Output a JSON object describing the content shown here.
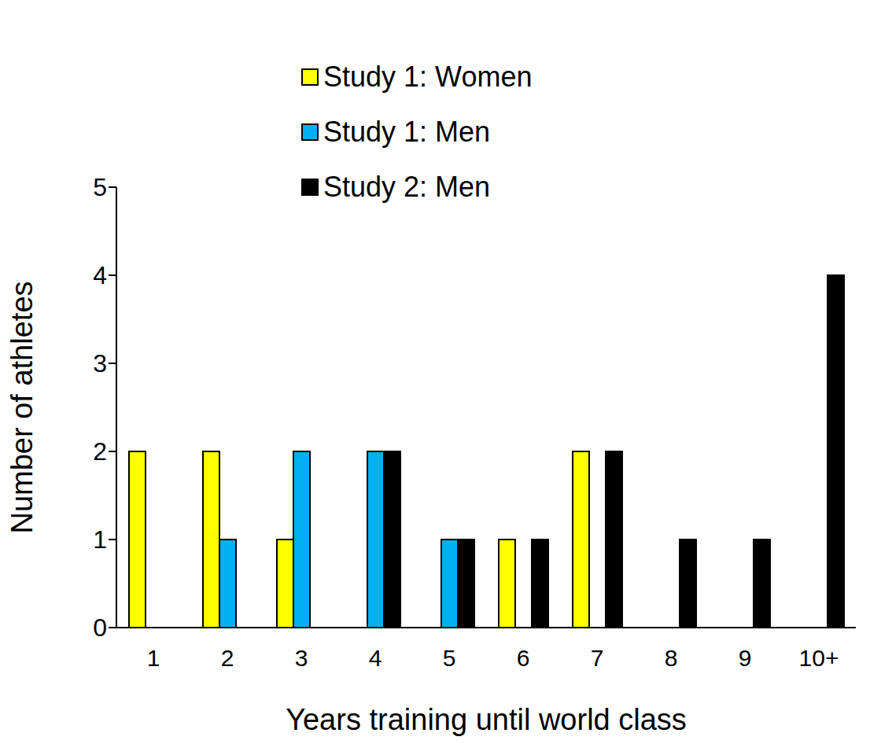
{
  "chart_data": {
    "type": "bar",
    "x_label": "Years training until world class",
    "y_label": "Number of athletes",
    "categories": [
      "1",
      "2",
      "3",
      "4",
      "5",
      "6",
      "7",
      "8",
      "9",
      "10+"
    ],
    "series": [
      {
        "name": "Study 1: Women",
        "color": "#ffff00",
        "values": [
          2,
          2,
          1,
          0,
          0,
          1,
          2,
          0,
          0,
          0
        ]
      },
      {
        "name": "Study 1: Men",
        "color": "#00b0f0",
        "values": [
          0,
          1,
          2,
          2,
          1,
          0,
          0,
          0,
          0,
          0
        ]
      },
      {
        "name": "Study 2: Men",
        "color": "#000000",
        "values": [
          0,
          0,
          0,
          2,
          1,
          1,
          2,
          1,
          1,
          4
        ]
      }
    ],
    "ylim": [
      0,
      5
    ],
    "yticks": [
      0,
      1,
      2,
      3,
      4,
      5
    ],
    "grid": false,
    "legend": "top"
  }
}
